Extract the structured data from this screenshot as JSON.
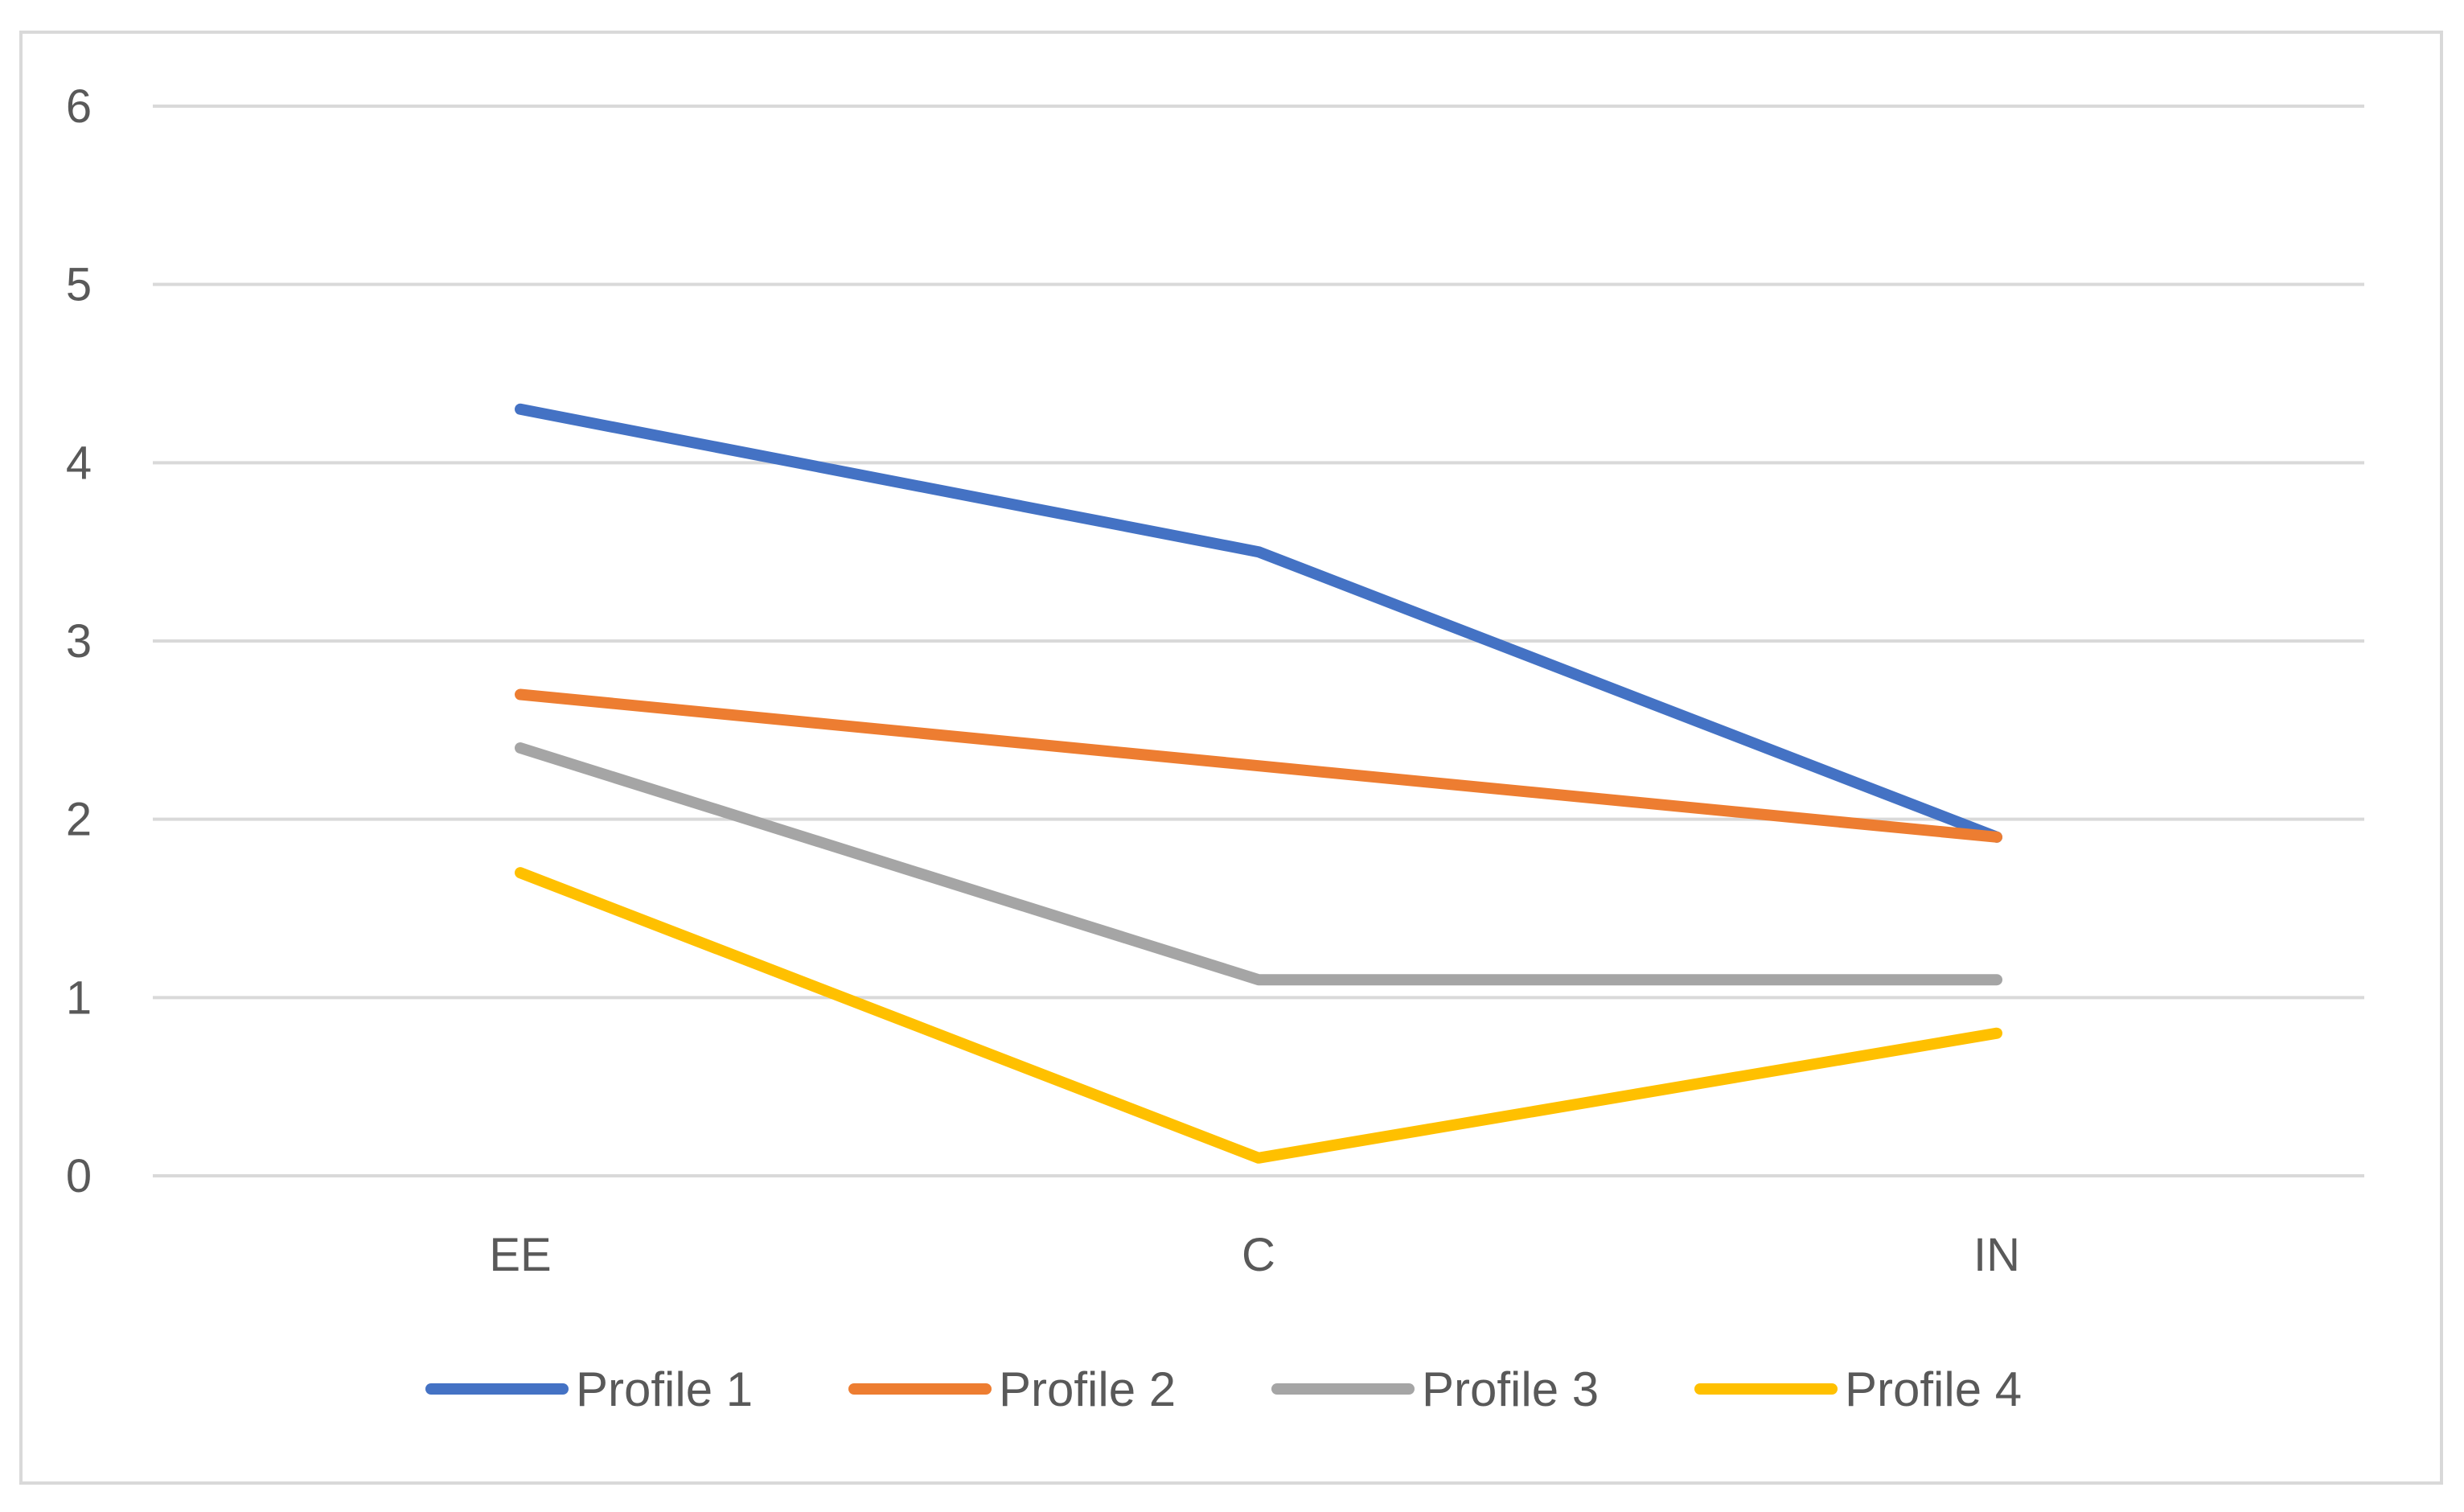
{
  "chart_data": {
    "type": "line",
    "title": "",
    "xlabel": "",
    "ylabel": "",
    "categories": [
      "EE",
      "C",
      "IN"
    ],
    "ylim": [
      0,
      6
    ],
    "yticks": [
      0,
      1,
      2,
      3,
      4,
      5,
      6
    ],
    "ytick_labels": [
      "0",
      "1",
      "2",
      "3",
      "4",
      "5",
      "6"
    ],
    "grid": "horizontal",
    "legend": "bottom",
    "series": [
      {
        "name": "Profile 1",
        "values": [
          4.3,
          3.5,
          1.9
        ],
        "color": "#4472c4"
      },
      {
        "name": "Profile 2",
        "values": [
          2.7,
          2.3,
          1.9
        ],
        "color": "#ed7d31"
      },
      {
        "name": "Profile 3",
        "values": [
          2.4,
          1.1,
          1.1
        ],
        "color": "#a5a5a5"
      },
      {
        "name": "Profile 4",
        "values": [
          1.7,
          0.1,
          0.8
        ],
        "color": "#ffc000"
      }
    ]
  }
}
